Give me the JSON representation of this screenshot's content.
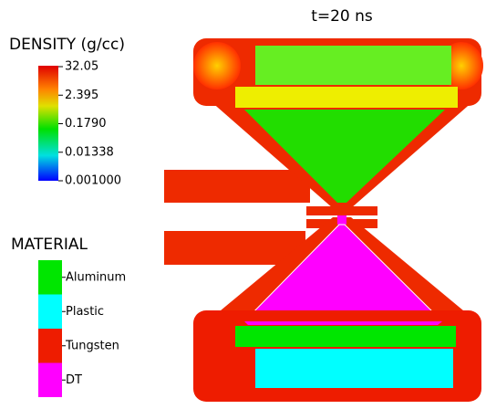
{
  "title": "t=20 ns",
  "colorbar": {
    "title": "DENSITY (g/cc)",
    "ticks": [
      "32.05",
      "2.395",
      "0.1790",
      "0.01338",
      "0.001000"
    ]
  },
  "material_legend": {
    "title": "MATERIAL",
    "entries": [
      {
        "label": "Aluminum",
        "color": "#00e600"
      },
      {
        "label": "Plastic",
        "color": "#00ffff"
      },
      {
        "label": "Tungsten",
        "color": "#ee1c00"
      },
      {
        "label": "DT",
        "color": "#ff00ff"
      }
    ]
  }
}
